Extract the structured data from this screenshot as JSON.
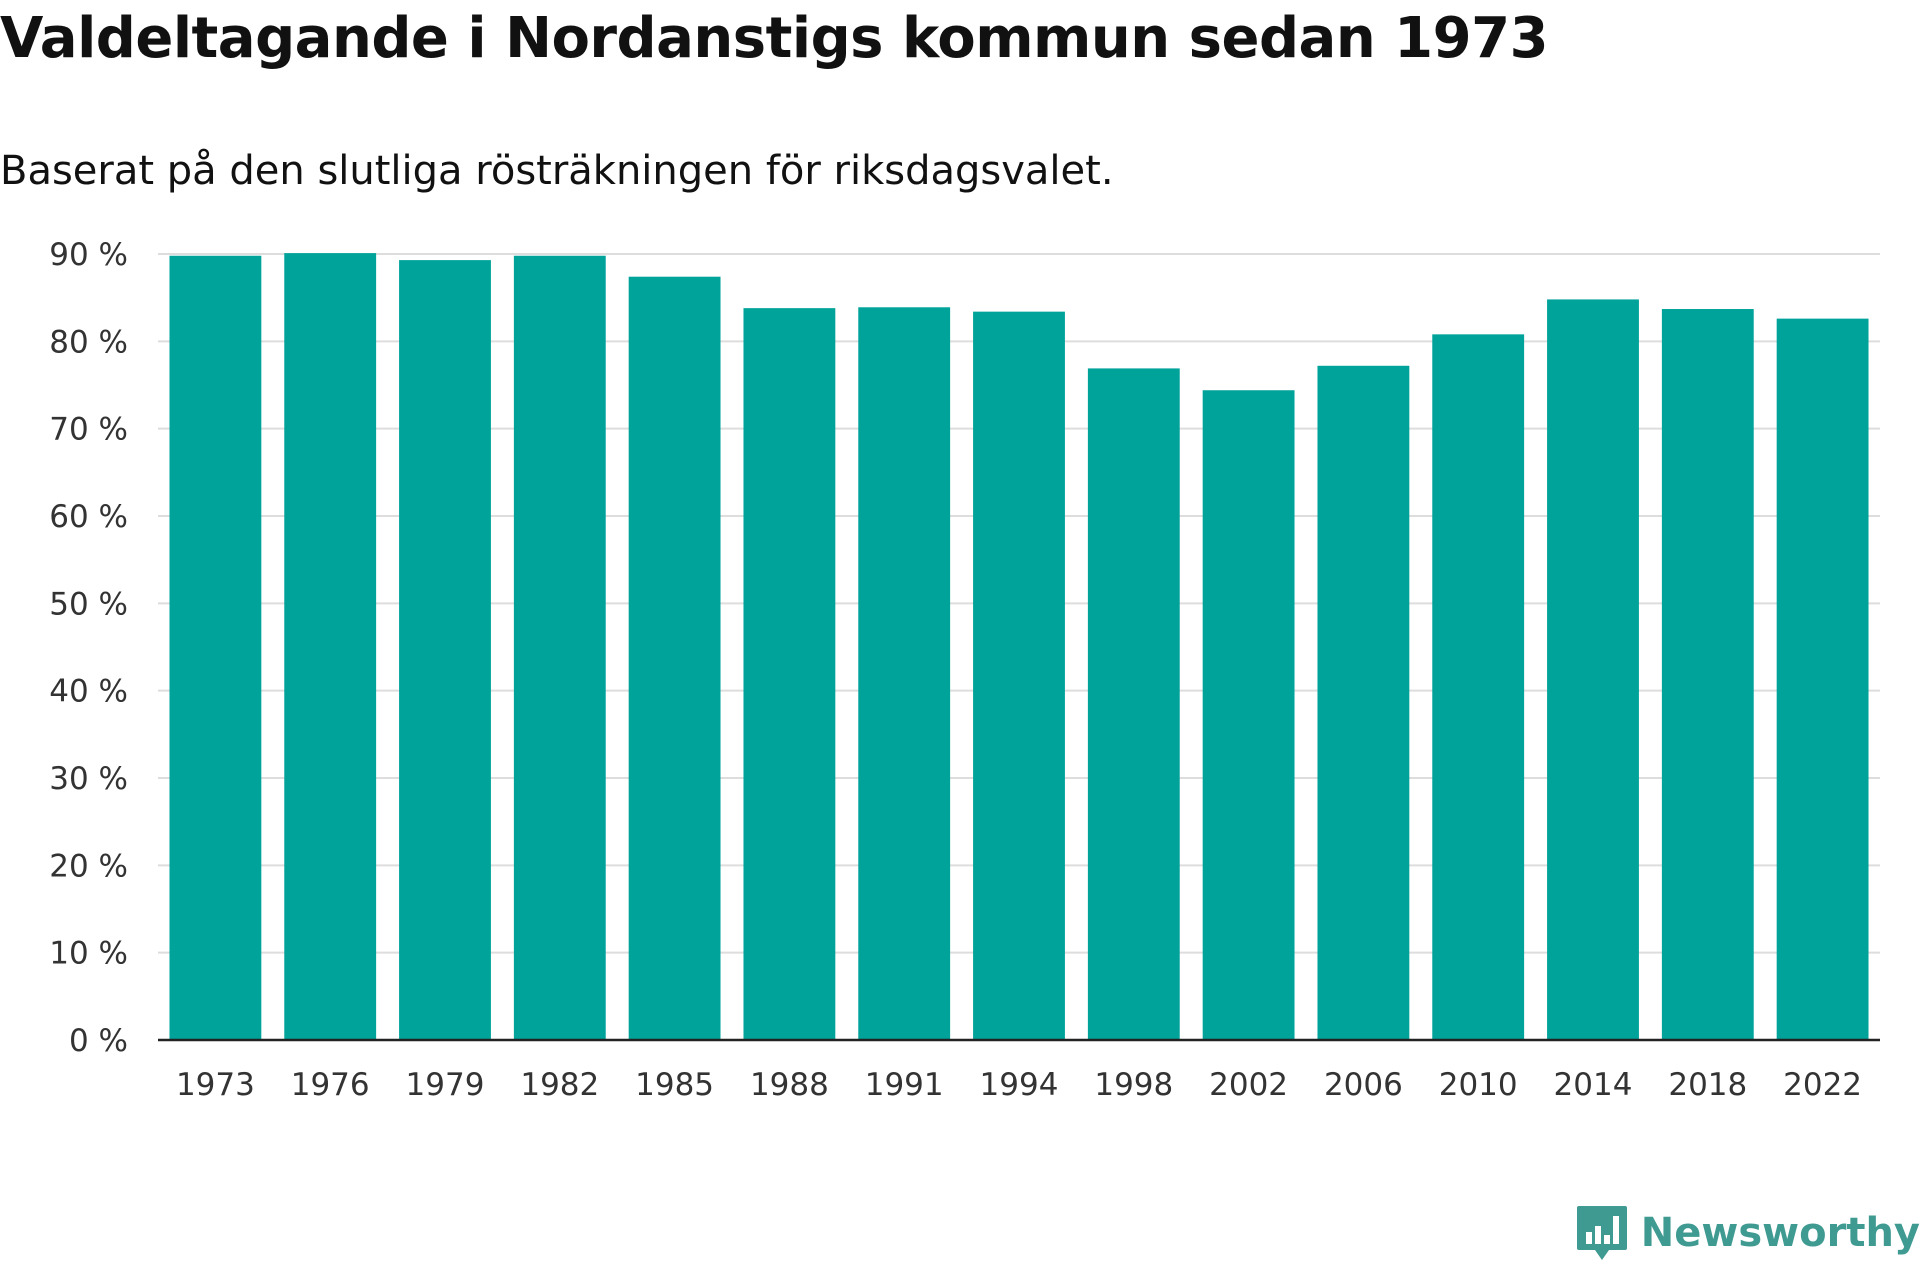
{
  "header": {
    "title": "Valdeltagande i Nordanstigs kommun sedan 1973",
    "subtitle": "Baserat på den slutliga rösträkningen för riksdagsvalet."
  },
  "colors": {
    "bar": "#00a39a",
    "brand": "#3f9a92"
  },
  "brand": {
    "name": "Newsworthy",
    "icon": "newsworthy-logo-icon"
  },
  "chart_data": {
    "type": "bar",
    "title": "Valdeltagande i Nordanstigs kommun sedan 1973",
    "subtitle": "Baserat på den slutliga rösträkningen för riksdagsvalet.",
    "xlabel": "",
    "ylabel": "",
    "categories": [
      "1973",
      "1976",
      "1979",
      "1982",
      "1985",
      "1988",
      "1991",
      "1994",
      "1998",
      "2002",
      "2006",
      "2010",
      "2014",
      "2018",
      "2022"
    ],
    "values": [
      89.8,
      90.1,
      89.3,
      89.8,
      87.4,
      83.8,
      83.9,
      83.4,
      76.9,
      74.4,
      77.2,
      80.8,
      84.8,
      83.7,
      82.6
    ],
    "ylim": [
      0,
      90
    ],
    "yticks": [
      0,
      10,
      20,
      30,
      40,
      50,
      60,
      70,
      80,
      90
    ],
    "ytick_labels": [
      "0 %",
      "10 %",
      "20 %",
      "30 %",
      "40 %",
      "50 %",
      "60 %",
      "70 %",
      "80 %",
      "90 %"
    ],
    "grid": true,
    "legend": "none"
  }
}
